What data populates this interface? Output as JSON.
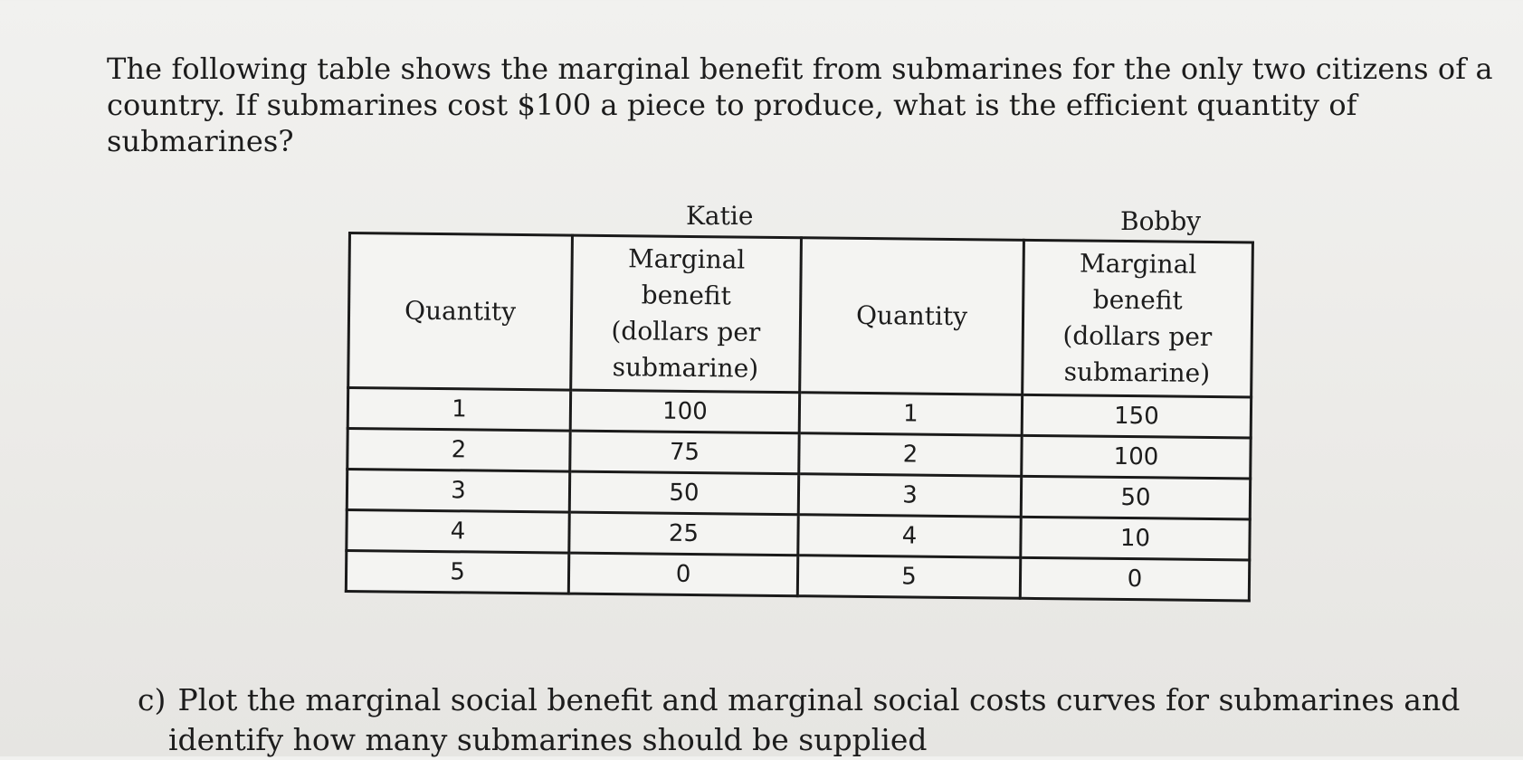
{
  "question": {
    "line1": "The following table shows the marginal benefit from submarines for the only two citizens of a",
    "line2": "country. If submarines cost $100 a piece to produce, what is the efficient quantity of submarines?"
  },
  "table": {
    "group_labels": [
      "Katie",
      "Bobby"
    ],
    "headers": {
      "quantity": "Quantity",
      "mb_line1": "Marginal",
      "mb_line2": "benefit",
      "mb_line3": "(dollars per",
      "mb_line4": "submarine)"
    },
    "rows": [
      {
        "katie_qty": "1",
        "katie_mb": "100",
        "bobby_qty": "1",
        "bobby_mb": "150"
      },
      {
        "katie_qty": "2",
        "katie_mb": "75",
        "bobby_qty": "2",
        "bobby_mb": "100"
      },
      {
        "katie_qty": "3",
        "katie_mb": "50",
        "bobby_qty": "3",
        "bobby_mb": "50"
      },
      {
        "katie_qty": "4",
        "katie_mb": "25",
        "bobby_qty": "4",
        "bobby_mb": "10"
      },
      {
        "katie_qty": "5",
        "katie_mb": "0",
        "bobby_qty": "5",
        "bobby_mb": "0"
      }
    ]
  },
  "part_c": {
    "label": "c)",
    "line1": "Plot the marginal social benefit and marginal social costs curves for submarines and",
    "line2": "identify how many submarines should be supplied"
  }
}
